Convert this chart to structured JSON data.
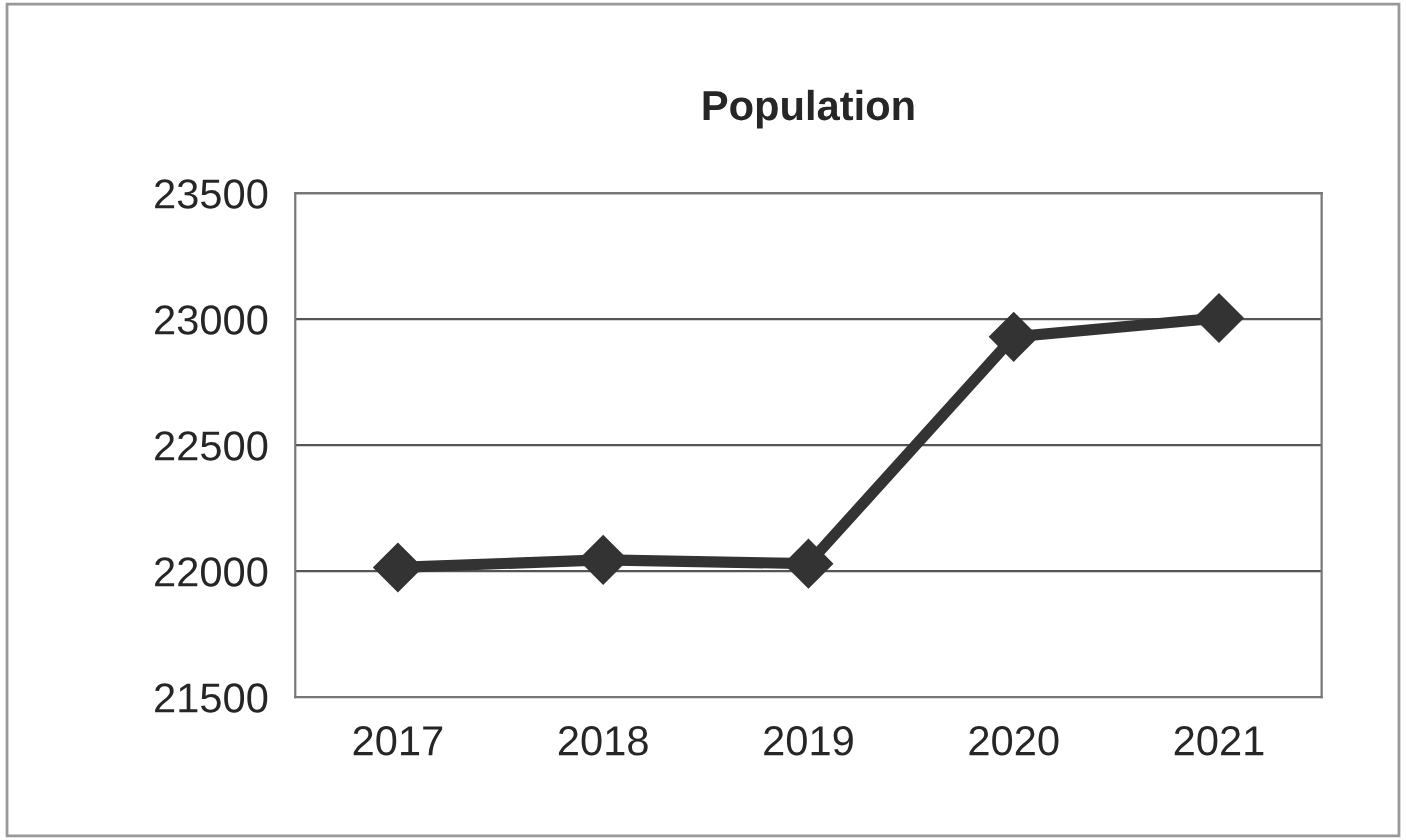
{
  "chart_data": {
    "type": "line",
    "title": "Population",
    "categories": [
      "2017",
      "2018",
      "2019",
      "2020",
      "2021"
    ],
    "series": [
      {
        "color": "#333333",
        "values": [
          22015,
          22045,
          22030,
          22930,
          23005
        ]
      }
    ],
    "ylim": [
      21500,
      23500
    ],
    "yticks": [
      21500,
      22000,
      22500,
      23000,
      23500
    ],
    "grid": "y",
    "marker": "diamond",
    "line_style": "solid",
    "legend": false
  }
}
